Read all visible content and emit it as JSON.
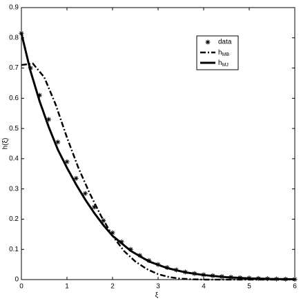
{
  "chart_data": {
    "type": "line",
    "xlabel": "ξ",
    "ylabel": "h(ξ)",
    "xlim": [
      0,
      6
    ],
    "ylim": [
      0,
      0.9
    ],
    "xticks": [
      0,
      1,
      2,
      3,
      4,
      5,
      6
    ],
    "yticks": [
      0,
      0.1,
      0.2,
      0.3,
      0.4,
      0.5,
      0.6,
      0.7,
      0.8,
      0.9
    ],
    "legend": "upper right",
    "series": [
      {
        "name": "data",
        "color": "#000000",
        "style": "marker",
        "x": [
          0,
          0.2,
          0.4,
          0.6,
          0.8,
          1.0,
          1.2,
          1.4,
          1.6,
          1.8,
          2.0,
          2.2,
          2.4,
          2.6,
          2.8,
          3.0,
          3.2,
          3.4,
          3.6,
          3.8,
          4.0,
          4.2,
          4.4,
          4.6,
          4.8,
          5.0,
          5.2,
          5.4,
          5.6,
          5.8,
          6.0
        ],
        "values": [
          0.815,
          0.7,
          0.61,
          0.53,
          0.455,
          0.39,
          0.335,
          0.285,
          0.24,
          0.195,
          0.155,
          0.125,
          0.1,
          0.08,
          0.063,
          0.05,
          0.04,
          0.032,
          0.025,
          0.02,
          0.016,
          0.013,
          0.01,
          0.008,
          0.006,
          0.005,
          0.004,
          0.003,
          0.002,
          0.0015,
          0.001
        ]
      },
      {
        "name": "h_MB",
        "color": "#000000",
        "style": "dashdot",
        "x": [
          0,
          0.25,
          0.5,
          0.75,
          1.0,
          1.25,
          1.5,
          1.75,
          2.0,
          2.25,
          2.5,
          2.75,
          3.0,
          3.25,
          3.5,
          3.75,
          4.0,
          5.0,
          6.0
        ],
        "values": [
          0.71,
          0.715,
          0.67,
          0.58,
          0.47,
          0.37,
          0.285,
          0.21,
          0.145,
          0.095,
          0.06,
          0.035,
          0.018,
          0.008,
          0.003,
          0.001,
          0,
          0,
          0
        ]
      },
      {
        "name": "h_MJ",
        "color": "#000000",
        "style": "solid",
        "x": [
          0,
          0.2,
          0.4,
          0.6,
          0.8,
          1.0,
          1.2,
          1.4,
          1.6,
          1.8,
          2.0,
          2.4,
          2.8,
          3.2,
          3.6,
          4.0,
          4.5,
          5.0,
          5.5,
          6.0
        ],
        "values": [
          0.815,
          0.69,
          0.59,
          0.505,
          0.43,
          0.37,
          0.315,
          0.265,
          0.22,
          0.18,
          0.145,
          0.095,
          0.06,
          0.038,
          0.024,
          0.015,
          0.008,
          0.004,
          0.002,
          0.001
        ]
      }
    ]
  }
}
